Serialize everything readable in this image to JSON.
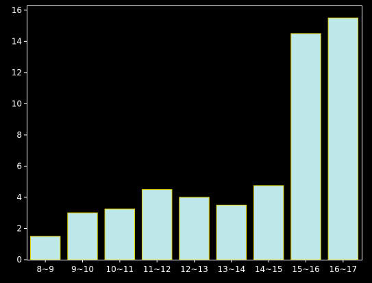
{
  "chart_data": {
    "type": "bar",
    "categories": [
      "8~9",
      "9~10",
      "10~11",
      "11~12",
      "12~13",
      "13~14",
      "14~15",
      "15~16",
      "16~17"
    ],
    "values": [
      1.5,
      3.0,
      3.25,
      4.5,
      4.0,
      3.5,
      4.75,
      14.5,
      15.5
    ],
    "ylim": [
      0,
      16.3
    ],
    "yticks": [
      0,
      2,
      4,
      6,
      8,
      10,
      12,
      14,
      16
    ],
    "title": "",
    "xlabel": "",
    "ylabel": "",
    "grid": false,
    "colors": {
      "background": "#000000",
      "bar_fill": "#bde7e8",
      "bar_edge": "#e0d000",
      "axis": "#ffffff",
      "text": "#ffffff"
    }
  }
}
